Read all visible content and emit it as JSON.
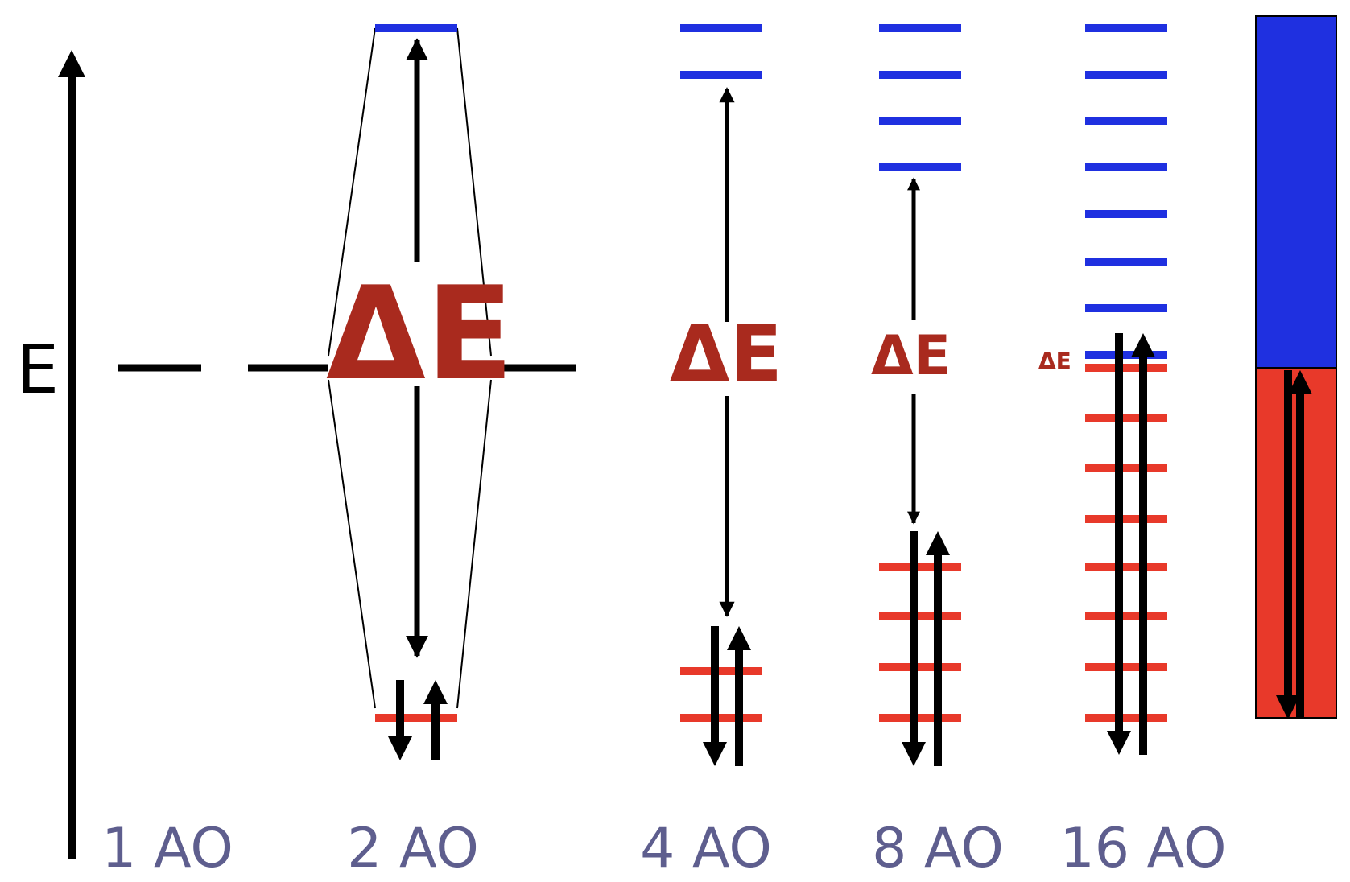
{
  "axis": {
    "label": "E"
  },
  "delta_label": "ΔE",
  "columns": [
    {
      "label": "1 AO"
    },
    {
      "label": "2 AO"
    },
    {
      "label": "4 AO"
    },
    {
      "label": "8 AO"
    },
    {
      "label": "16 AO"
    }
  ],
  "colors": {
    "bonding": "#e8392a",
    "antibonding": "#1f30e0",
    "delta": "#a92a1e",
    "line": "#000000",
    "label": "#5e5e8e"
  }
}
